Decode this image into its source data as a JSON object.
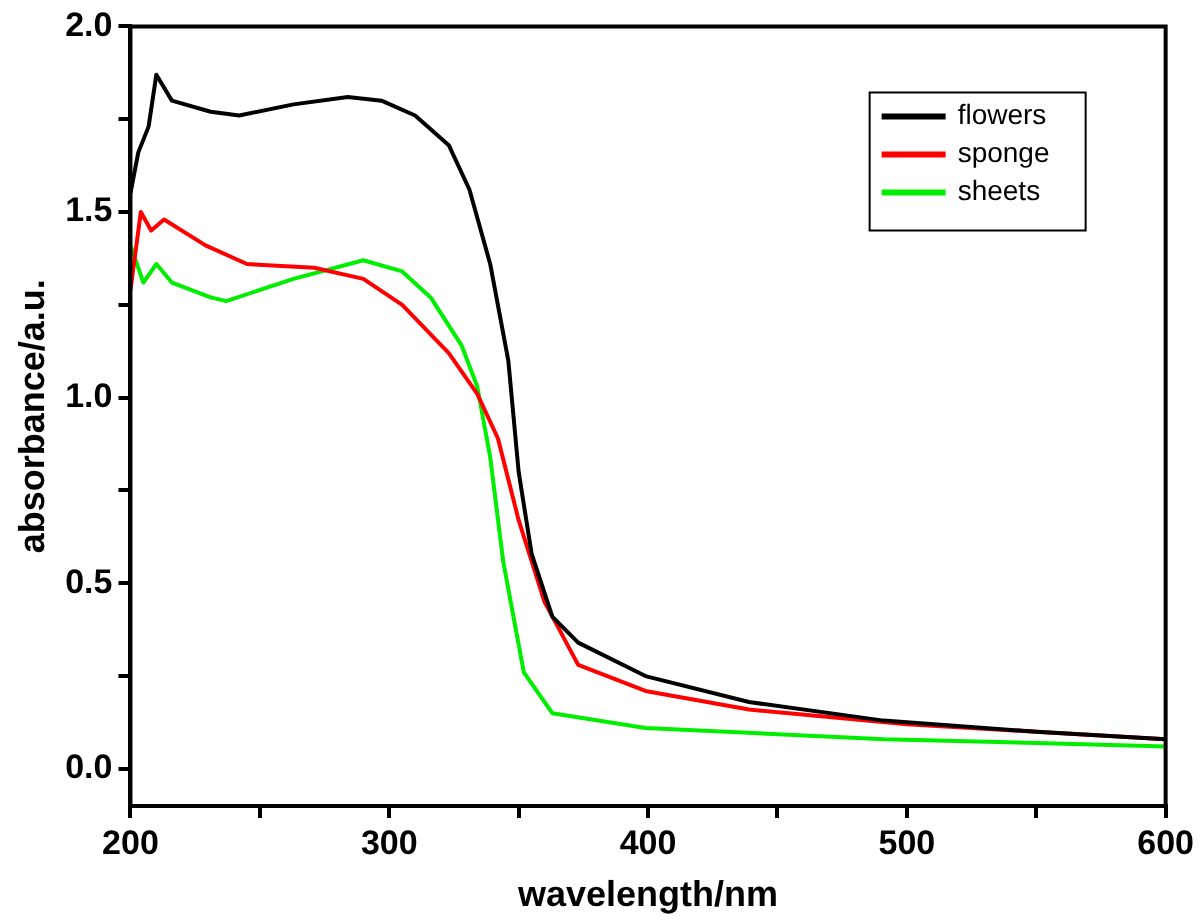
{
  "chart_data": {
    "type": "line",
    "xlabel": "wavelength/nm",
    "ylabel": "absorbance/a.u.",
    "xlim": [
      200,
      600
    ],
    "xticks": [
      200,
      {
        "value": 250,
        "label": null
      },
      300,
      {
        "value": 350,
        "label": null
      },
      400,
      {
        "value": 450,
        "label": null
      },
      500,
      {
        "value": 550,
        "label": null
      },
      600
    ],
    "ylim": [
      -0.1,
      2.0
    ],
    "yticks": [
      {
        "value": 0,
        "label": "0.0"
      },
      {
        "value": 0.25,
        "label": null
      },
      {
        "value": 0.5,
        "label": "0.5"
      },
      {
        "value": 0.75,
        "label": null
      },
      {
        "value": 1,
        "label": "1.0"
      },
      {
        "value": 1.25,
        "label": null
      },
      {
        "value": 1.5,
        "label": "1.5"
      },
      {
        "value": 1.75,
        "label": null
      },
      {
        "value": 2,
        "label": "2.0"
      }
    ],
    "legend": "top right",
    "grid": false,
    "marker": "none",
    "line_style": "solid",
    "series": [
      {
        "name": "flowers",
        "color": "#000000",
        "x": [
          200,
          203,
          207,
          210,
          216,
          231,
          242,
          263,
          284,
          297,
          310,
          323,
          331,
          339,
          346,
          350,
          355,
          363,
          373,
          399,
          439,
          491,
          550,
          600
        ],
        "values": [
          1.55,
          1.66,
          1.73,
          1.87,
          1.8,
          1.77,
          1.76,
          1.79,
          1.81,
          1.8,
          1.76,
          1.68,
          1.56,
          1.36,
          1.1,
          0.8,
          0.58,
          0.41,
          0.34,
          0.25,
          0.18,
          0.13,
          0.1,
          0.08
        ]
      },
      {
        "name": "sponge",
        "color": "#ff0000",
        "x": [
          200,
          204,
          208,
          213,
          229,
          245,
          271,
          290,
          305,
          323,
          334,
          342,
          350,
          360,
          373,
          399,
          439,
          500,
          550,
          600
        ],
        "values": [
          1.29,
          1.5,
          1.45,
          1.48,
          1.41,
          1.36,
          1.35,
          1.32,
          1.25,
          1.12,
          1.01,
          0.89,
          0.67,
          0.45,
          0.28,
          0.21,
          0.16,
          0.12,
          0.1,
          0.08
        ]
      },
      {
        "name": "sheets",
        "color": "#00ee00",
        "x": [
          200,
          205,
          210,
          216,
          231,
          237,
          263,
          290,
          305,
          316,
          328,
          334,
          339,
          344,
          352,
          363,
          399,
          491,
          550,
          600
        ],
        "values": [
          1.41,
          1.31,
          1.36,
          1.31,
          1.27,
          1.26,
          1.32,
          1.37,
          1.34,
          1.27,
          1.14,
          1.03,
          0.84,
          0.56,
          0.26,
          0.15,
          0.11,
          0.08,
          0.07,
          0.06
        ]
      }
    ]
  }
}
